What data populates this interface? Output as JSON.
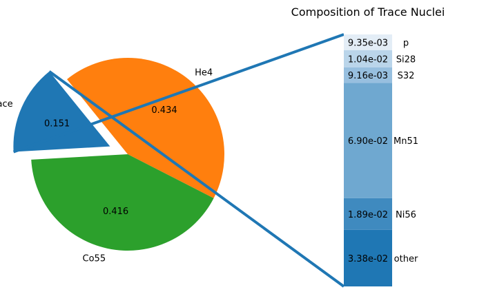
{
  "chart_data": [
    {
      "type": "pie",
      "labels": [
        "He4",
        "trace",
        "Co55"
      ],
      "values": [
        0.434,
        0.151,
        0.416
      ],
      "value_labels": [
        "0.434",
        "0.151",
        "0.416"
      ],
      "exploded": [
        "trace"
      ],
      "colors": [
        "#ff7f0e",
        "#1f77b4",
        "#2ca02c"
      ]
    },
    {
      "type": "bar",
      "stacked": true,
      "title": "Composition of Trace Nuclei",
      "categories": [
        "other",
        "Ni56",
        "Mn51",
        "S32",
        "Si28",
        "p"
      ],
      "values": [
        0.0338,
        0.0189,
        0.069,
        0.00916,
        0.0104,
        0.00935
      ],
      "value_labels": [
        "3.38e-02",
        "1.89e-02",
        "6.90e-02",
        "9.16e-03",
        "1.04e-02",
        "9.35e-03"
      ],
      "colors": [
        "#1f77b4",
        "#3f8abf",
        "#6fa8d0",
        "#97bfdf",
        "#bad5ea",
        "#e3edf6"
      ],
      "connector_color": "#1f77b4"
    }
  ]
}
